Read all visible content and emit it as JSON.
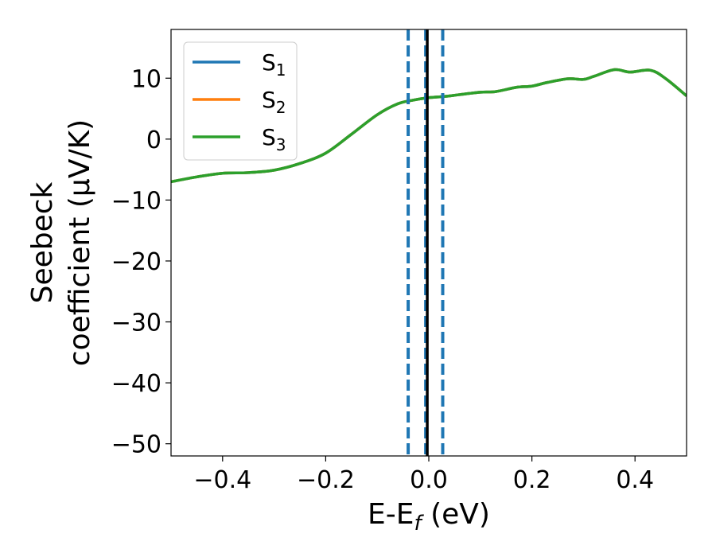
{
  "chart_data": {
    "type": "line",
    "xlabel": "E-E",
    "xlabel_sub": "f",
    "xlabel_unit": " (eV)",
    "ylabel_line1": "Seebeck",
    "ylabel_line2": "coefficient  (μV/K)",
    "xlim": [
      -0.5,
      0.5
    ],
    "ylim": [
      -52,
      18
    ],
    "xticks": [
      -0.4,
      -0.2,
      0.0,
      0.2,
      0.4
    ],
    "xtick_labels": [
      "−0.4",
      "−0.2",
      "0.0",
      "0.2",
      "0.4"
    ],
    "yticks": [
      -50,
      -40,
      -30,
      -20,
      -10,
      0,
      10
    ],
    "ytick_labels": [
      "−50",
      "−40",
      "−30",
      "−20",
      "−10",
      "0",
      "10"
    ],
    "grid": false,
    "legend_position": "top-left",
    "series": [
      {
        "label": "S",
        "sub": "1",
        "color": "#1f77b4",
        "x": [
          -0.5,
          -0.45,
          -0.4,
          -0.35,
          -0.3,
          -0.25,
          -0.2,
          -0.15,
          -0.1,
          -0.06,
          -0.03,
          0.0,
          0.03,
          0.06,
          0.1,
          0.13,
          0.17,
          0.2,
          0.23,
          0.27,
          0.3,
          0.32,
          0.36,
          0.39,
          0.43,
          0.46,
          0.5
        ],
        "y": [
          -7,
          -6.2,
          -5.6,
          -5.5,
          -5.1,
          -4.0,
          -2.3,
          0.8,
          4.0,
          5.8,
          6.4,
          6.8,
          7.0,
          7.3,
          7.7,
          7.8,
          8.5,
          8.7,
          9.3,
          9.9,
          9.8,
          10.3,
          11.4,
          11.0,
          11.3,
          9.9,
          7.1
        ]
      },
      {
        "label": "S",
        "sub": "2",
        "color": "#ff7f0e",
        "x": [
          -0.5,
          -0.45,
          -0.4,
          -0.35,
          -0.3,
          -0.25,
          -0.2,
          -0.15,
          -0.1,
          -0.06,
          -0.03,
          0.0,
          0.03,
          0.06,
          0.1,
          0.13,
          0.17,
          0.2,
          0.23,
          0.27,
          0.3,
          0.32,
          0.36,
          0.39,
          0.43,
          0.46,
          0.5
        ],
        "y": [
          -7,
          -6.2,
          -5.6,
          -5.5,
          -5.1,
          -4.0,
          -2.3,
          0.8,
          4.0,
          5.8,
          6.4,
          6.8,
          7.0,
          7.3,
          7.7,
          7.8,
          8.5,
          8.7,
          9.3,
          9.9,
          9.8,
          10.3,
          11.4,
          11.0,
          11.3,
          9.9,
          7.1
        ]
      },
      {
        "label": "S",
        "sub": "3",
        "color": "#2ca02c",
        "x": [
          -0.5,
          -0.45,
          -0.4,
          -0.35,
          -0.3,
          -0.25,
          -0.2,
          -0.15,
          -0.1,
          -0.06,
          -0.03,
          0.0,
          0.03,
          0.06,
          0.1,
          0.13,
          0.17,
          0.2,
          0.23,
          0.27,
          0.3,
          0.32,
          0.36,
          0.39,
          0.43,
          0.46,
          0.5
        ],
        "y": [
          -7,
          -6.2,
          -5.6,
          -5.5,
          -5.1,
          -4.0,
          -2.3,
          0.8,
          4.0,
          5.8,
          6.4,
          6.8,
          7.0,
          7.3,
          7.7,
          7.8,
          8.5,
          8.7,
          9.3,
          9.9,
          9.8,
          10.3,
          11.4,
          11.0,
          11.3,
          9.9,
          7.1
        ]
      }
    ],
    "vlines": [
      {
        "x": -0.04,
        "style": "dashed",
        "color": "#1f77b4"
      },
      {
        "x": 0.027,
        "style": "dashed",
        "color": "#1f77b4"
      },
      {
        "x": -0.006,
        "style": "dashed",
        "color": "#1f77b4"
      },
      {
        "x": -0.003,
        "style": "solid",
        "color": "#000000"
      }
    ]
  }
}
